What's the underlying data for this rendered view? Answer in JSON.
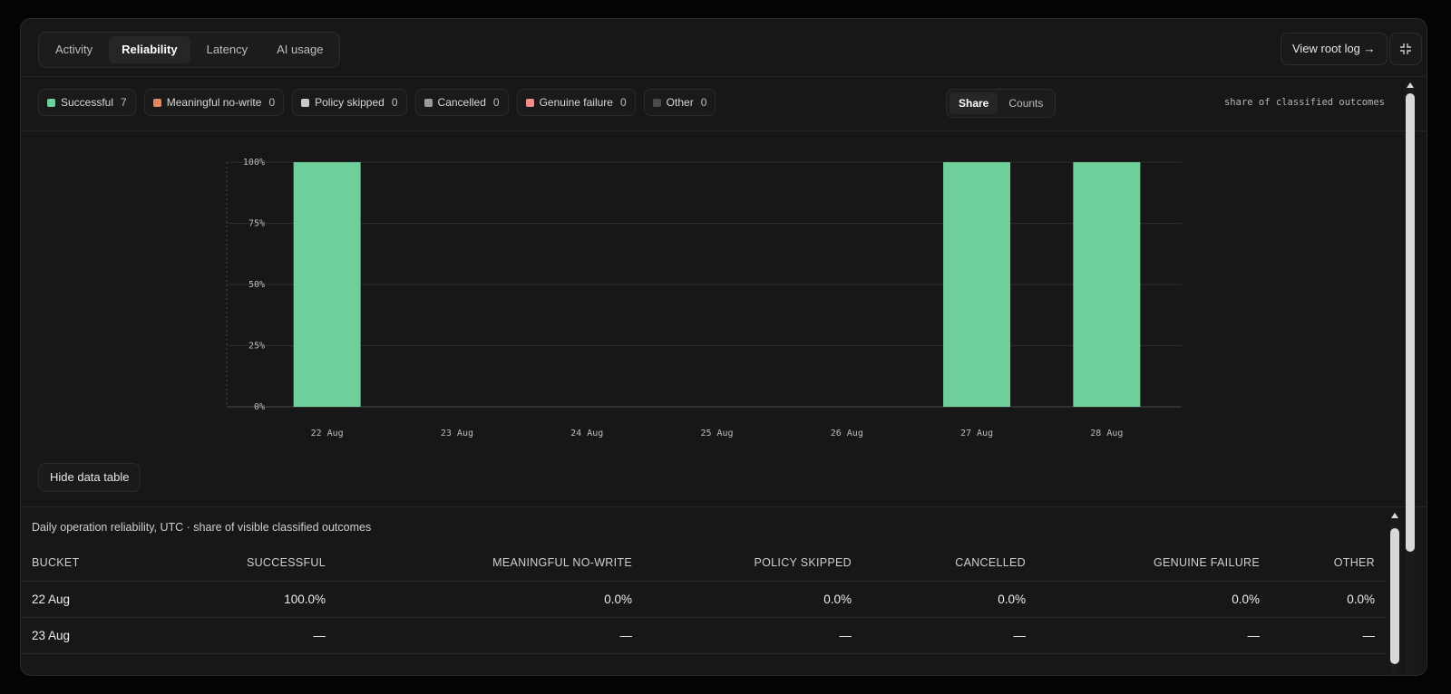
{
  "tabs": [
    {
      "label": "Activity",
      "active": false
    },
    {
      "label": "Reliability",
      "active": true
    },
    {
      "label": "Latency",
      "active": false
    },
    {
      "label": "AI usage",
      "active": false
    }
  ],
  "header": {
    "view_root_log": "View root log →"
  },
  "legend": [
    {
      "label": "Successful",
      "count": "7",
      "color": "#6fcf9b"
    },
    {
      "label": "Meaningful no-write",
      "count": "0",
      "color": "#e8855c"
    },
    {
      "label": "Policy skipped",
      "count": "0",
      "color": "#c9c9c9"
    },
    {
      "label": "Cancelled",
      "count": "0",
      "color": "#9a9a9a"
    },
    {
      "label": "Genuine failure",
      "count": "0",
      "color": "#f08c8c"
    },
    {
      "label": "Other",
      "count": "0",
      "color": "#4a4a4a"
    }
  ],
  "mode_toggle": {
    "share": "Share",
    "counts": "Counts",
    "active": "Share"
  },
  "share_note": "share of classified outcomes",
  "chart_data": {
    "type": "bar",
    "stacked": true,
    "categories": [
      "22 Aug",
      "23 Aug",
      "24 Aug",
      "25 Aug",
      "26 Aug",
      "27 Aug",
      "28 Aug"
    ],
    "series": [
      {
        "name": "Successful",
        "values": [
          100,
          null,
          null,
          null,
          null,
          100,
          100
        ],
        "color": "#6fcf9b"
      }
    ],
    "ylim": [
      0,
      100
    ],
    "yticks": [
      "0%",
      "25%",
      "50%",
      "75%",
      "100%"
    ],
    "grid": true
  },
  "hide_table_button": "Hide data table",
  "table": {
    "caption": "Daily operation reliability, UTC · share of visible classified outcomes",
    "headers": [
      "BUCKET",
      "SUCCESSFUL",
      "MEANINGFUL NO-WRITE",
      "POLICY SKIPPED",
      "CANCELLED",
      "GENUINE FAILURE",
      "OTHER"
    ],
    "rows": [
      [
        "22 Aug",
        "100.0%",
        "0.0%",
        "0.0%",
        "0.0%",
        "0.0%",
        "0.0%"
      ],
      [
        "23 Aug",
        "—",
        "—",
        "—",
        "—",
        "—",
        "—"
      ]
    ]
  }
}
